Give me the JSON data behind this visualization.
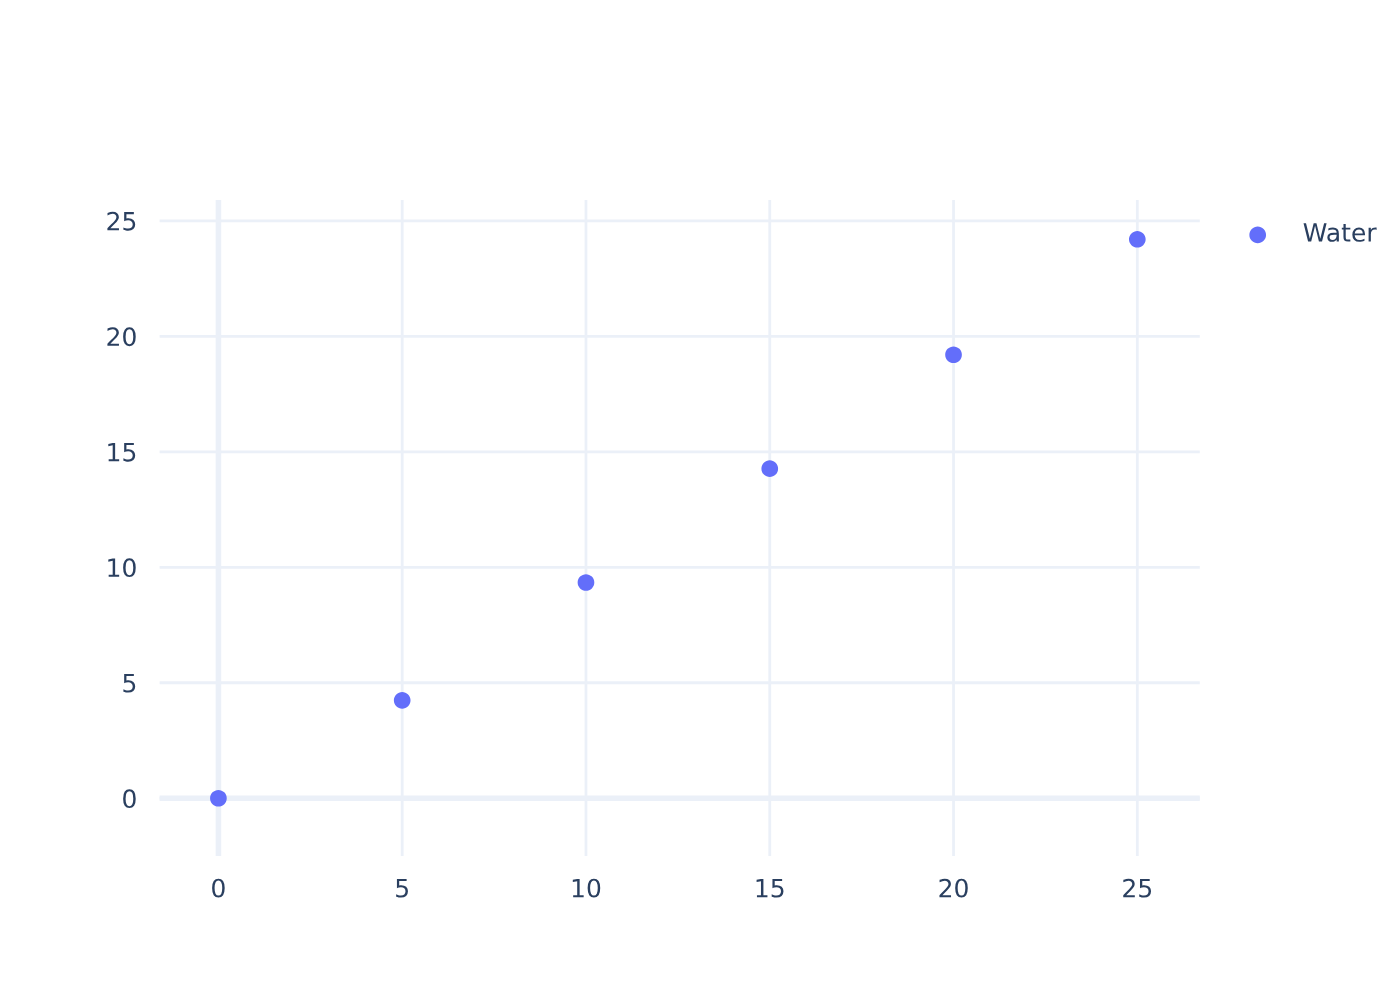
{
  "chart_data": {
    "type": "scatter",
    "x": [
      0,
      5,
      10,
      15,
      20,
      25
    ],
    "series": [
      {
        "name": "Water",
        "color": "#636efa",
        "values": [
          0,
          4.24,
          9.34,
          14.27,
          19.2,
          24.2
        ]
      }
    ],
    "xlim": [
      -1.6,
      26.7
    ],
    "ylim": [
      -2.5,
      25.9
    ],
    "xticks": [
      0,
      5,
      10,
      15,
      20,
      25
    ],
    "yticks": [
      0,
      5,
      10,
      15,
      20,
      25
    ],
    "grid": true,
    "legend": "top right",
    "marker": "circle"
  }
}
